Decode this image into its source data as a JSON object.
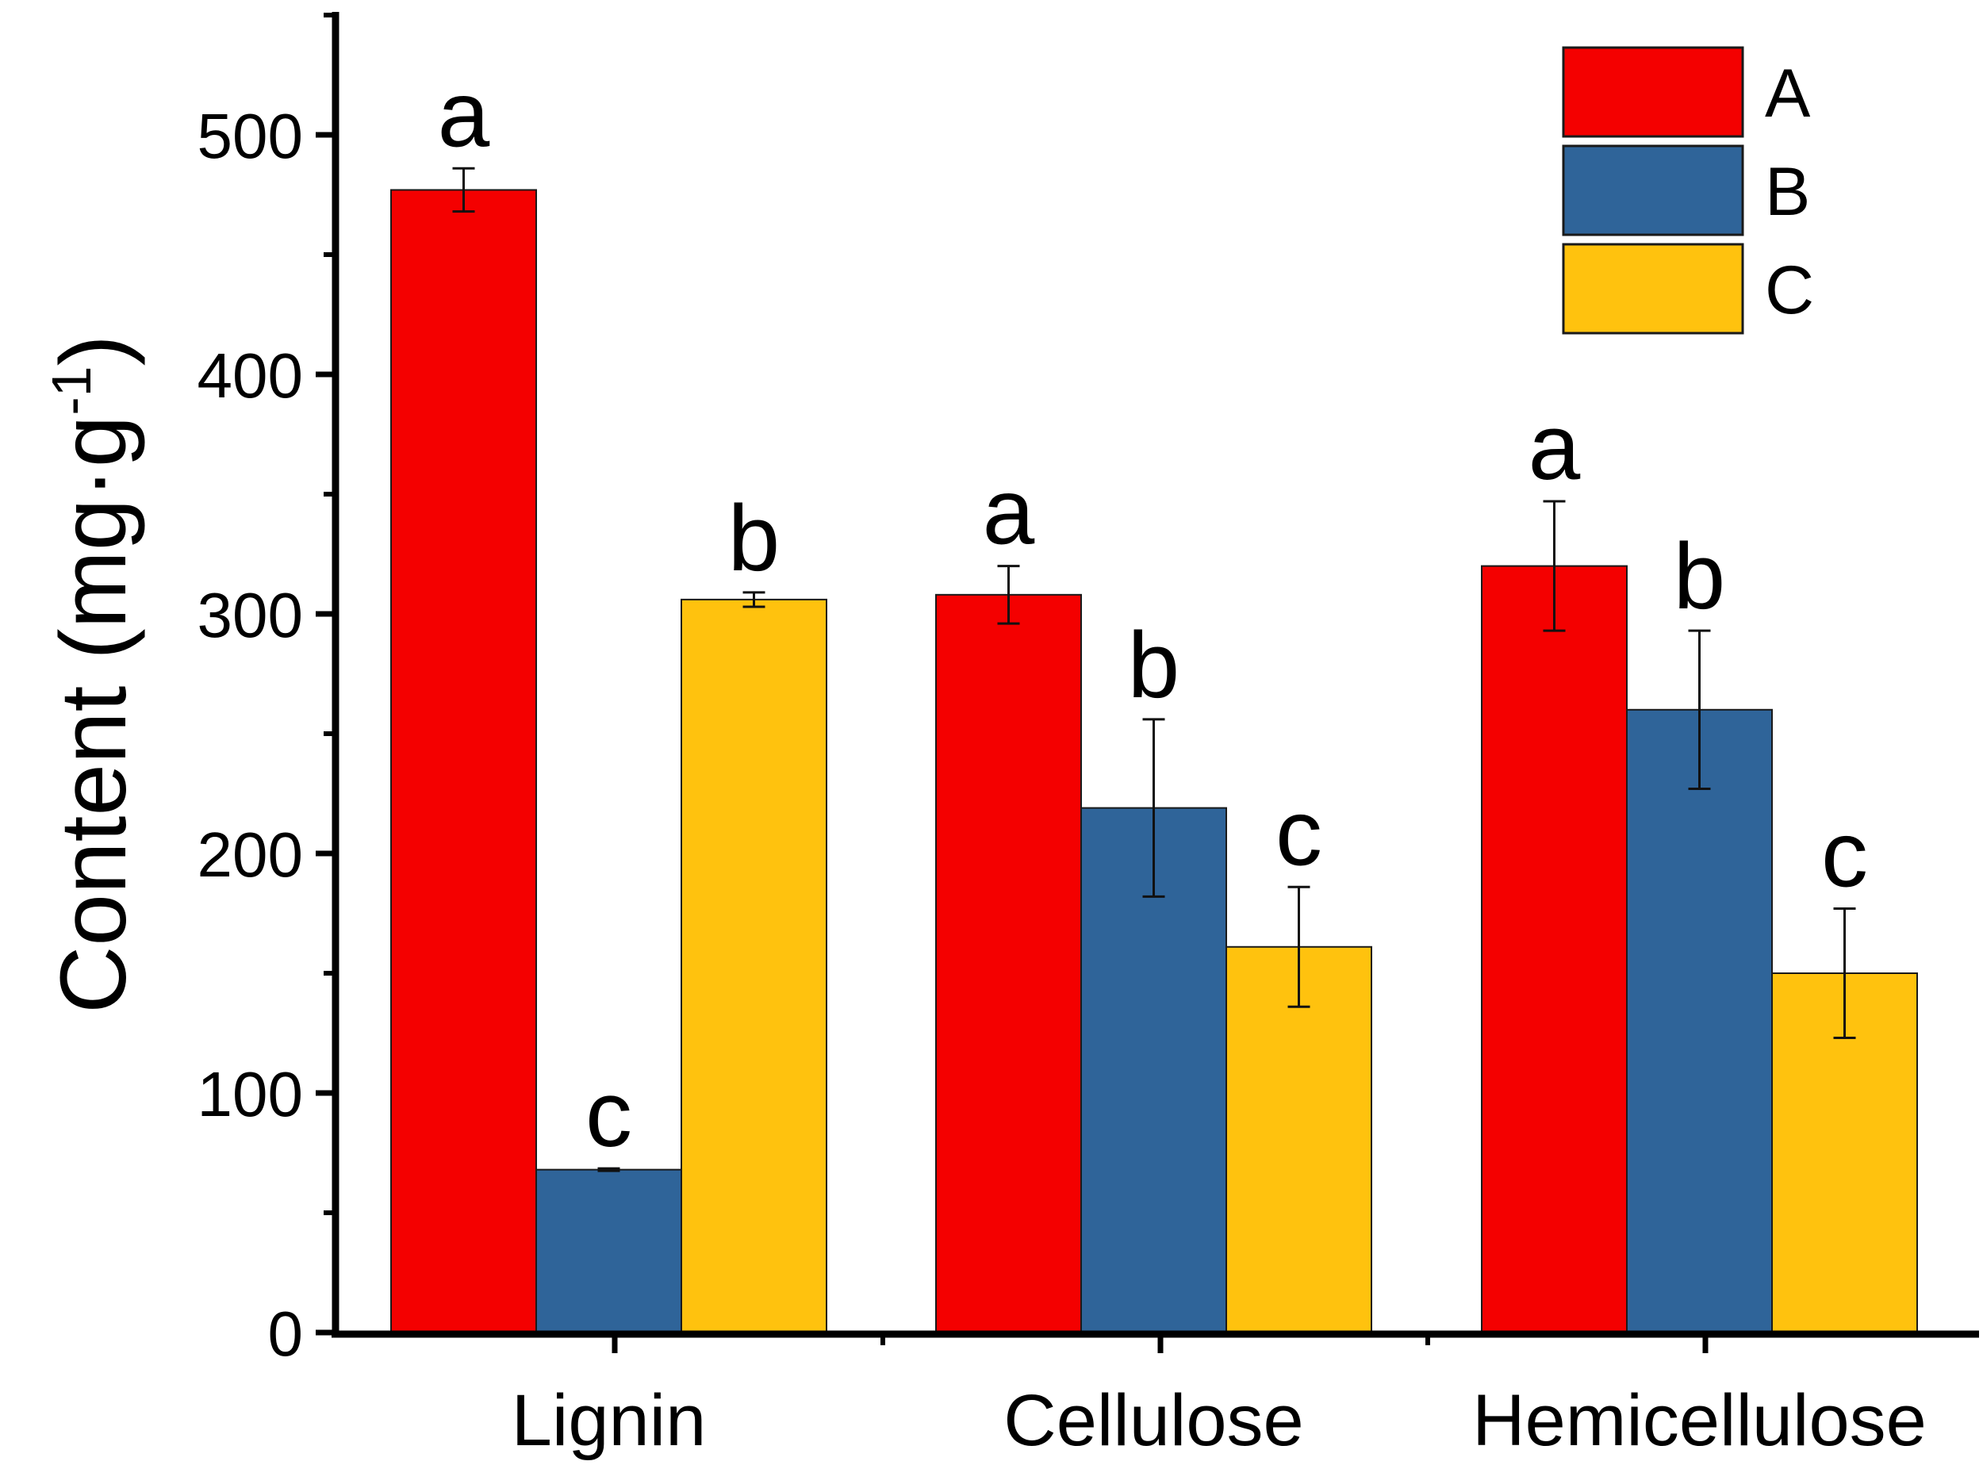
{
  "chart_data": {
    "type": "bar",
    "title": "",
    "xlabel": "",
    "ylabel": "Content (mg·g",
    "ylabel_superscript": "-1",
    "ylabel_suffix": ")",
    "ylim": [
      0,
      550
    ],
    "yticks": [
      0,
      100,
      200,
      300,
      400,
      500
    ],
    "grid": false,
    "legend_position": "top-right",
    "categories": [
      "Lignin",
      "Cellulose",
      "Hemicellulose"
    ],
    "series": [
      {
        "name": "A",
        "color": "#f40000",
        "values": [
          477,
          308,
          320
        ],
        "errors": [
          9,
          12,
          27
        ],
        "letters": [
          "a",
          "a",
          "a"
        ]
      },
      {
        "name": "B",
        "color": "#2f6499",
        "values": [
          68,
          219,
          260
        ],
        "errors": [
          0.5,
          37,
          33
        ],
        "letters": [
          "c",
          "b",
          "b"
        ]
      },
      {
        "name": "C",
        "color": "#ffc20e",
        "values": [
          306,
          161,
          150
        ],
        "errors": [
          3,
          25,
          27
        ],
        "letters": [
          "b",
          "c",
          "c"
        ]
      }
    ]
  }
}
